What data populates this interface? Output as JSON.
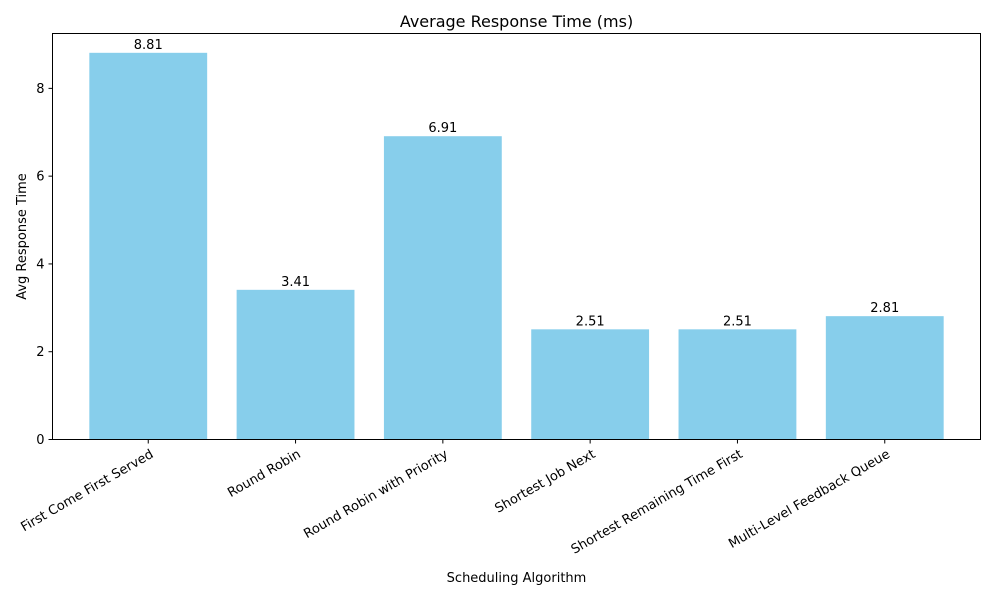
{
  "chart_data": {
    "type": "bar",
    "title": "Average Response Time (ms)",
    "xlabel": "Scheduling Algorithm",
    "ylabel": "Avg Response Time",
    "categories": [
      "First Come First Served",
      "Round Robin",
      "Round Robin with Priority",
      "Shortest Job Next",
      "Shortest Remaining Time First",
      "Multi-Level Feedback Queue"
    ],
    "values": [
      8.81,
      3.41,
      6.91,
      2.51,
      2.51,
      2.81
    ],
    "value_labels": [
      "8.81",
      "3.41",
      "6.91",
      "2.51",
      "2.51",
      "2.81"
    ],
    "ylim": [
      0,
      9.25
    ],
    "yticks": [
      0,
      2,
      4,
      6,
      8
    ],
    "ytick_labels": [
      "0",
      "2",
      "4",
      "6",
      "8"
    ],
    "bar_color": "#87ceeb",
    "grid": false,
    "legend": "none"
  }
}
